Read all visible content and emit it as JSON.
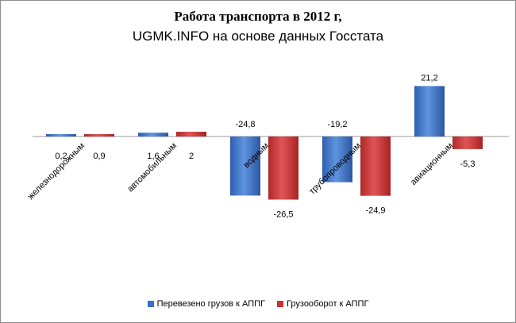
{
  "chart_data": {
    "type": "bar",
    "title": "Работа транспорта в 2012 г,",
    "subtitle": "UGMK.INFO на основе данных Госстата",
    "categories": [
      "железнодорожным",
      "автомобильным",
      "водным",
      "трубопроводным",
      "авиационным"
    ],
    "series": [
      {
        "name": "Перевезено грузов к АППГ",
        "values": [
          0.2,
          1.6,
          -24.8,
          -19.2,
          21.2
        ],
        "labels": [
          "0,2",
          "1,6",
          "-24,8",
          "-19,2",
          "21,2"
        ],
        "color": "#3a6fc4"
      },
      {
        "name": "Грузооборот к АППГ",
        "values": [
          0.9,
          2,
          -26.5,
          -24.9,
          -5.3
        ],
        "labels": [
          "0,9",
          "2",
          "-26,5",
          "-24,9",
          "-5,3"
        ],
        "color": "#c83232"
      }
    ],
    "ylabel": "",
    "xlabel": "",
    "ylim": [
      -30,
      25
    ],
    "grid": false,
    "legend": "bottom"
  }
}
